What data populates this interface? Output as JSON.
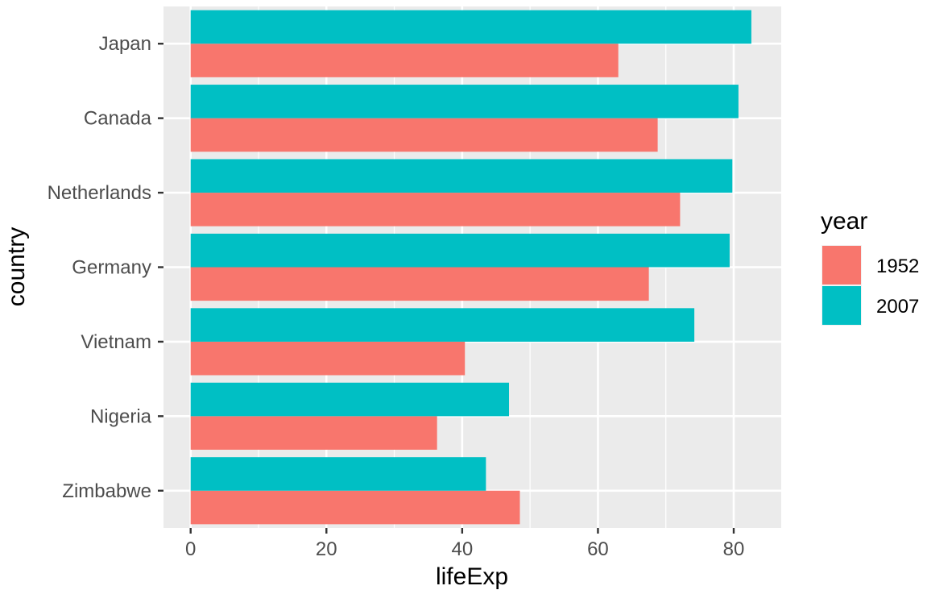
{
  "chart_data": {
    "type": "bar",
    "orientation": "horizontal",
    "title": "",
    "xlabel": "lifeExp",
    "ylabel": "country",
    "categories": [
      "Japan",
      "Canada",
      "Netherlands",
      "Germany",
      "Vietnam",
      "Nigeria",
      "Zimbabwe"
    ],
    "series": [
      {
        "name": "1952",
        "color": "#F8766D",
        "values": [
          63.0,
          68.8,
          72.1,
          67.5,
          40.4,
          36.3,
          48.5
        ]
      },
      {
        "name": "2007",
        "color": "#00BFC4",
        "values": [
          82.6,
          80.7,
          79.8,
          79.4,
          74.2,
          46.9,
          43.5
        ]
      }
    ],
    "xlim": [
      -4,
      87
    ],
    "xticks": [
      0,
      20,
      40,
      60,
      80
    ],
    "grid": true,
    "legend": {
      "title": "year",
      "position": "right"
    },
    "panel_background": "#EBEBEB",
    "gridline_color": "#FFFFFF"
  }
}
